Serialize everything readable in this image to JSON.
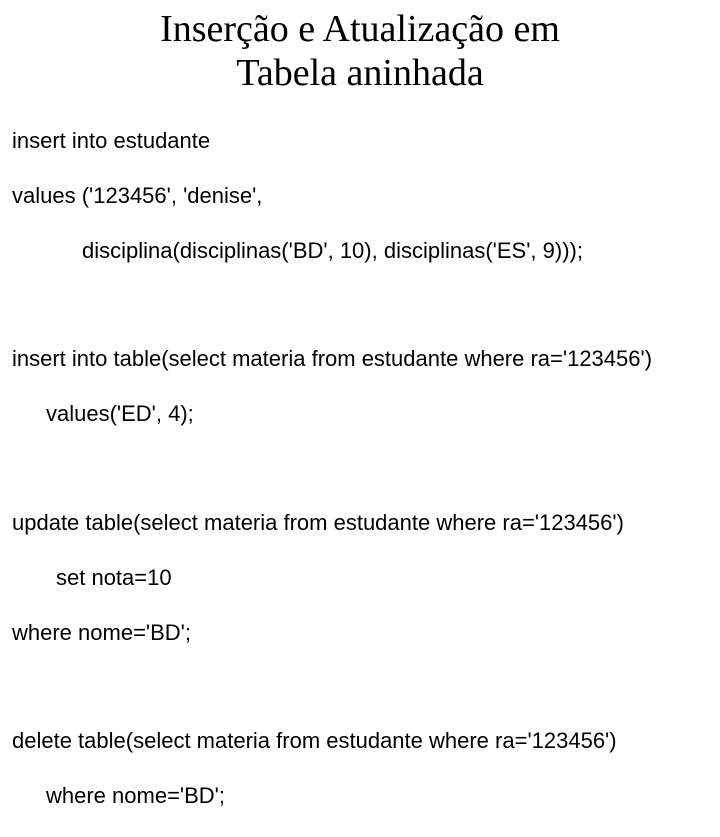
{
  "title_line1": "Inserção e Atualização em",
  "title_line2": "Tabela aninhada",
  "block1_l1": "insert into estudante",
  "block1_l2": "values ('123456', 'denise',",
  "block1_l3": "disciplina(disciplinas('BD', 10), disciplinas('ES', 9)));",
  "block2_l1": "insert into table(select materia from estudante where ra='123456')",
  "block2_l2": "values('ED', 4);",
  "block3_l1": "update table(select materia from estudante where ra='123456')",
  "block3_l2": "set nota=10",
  "block3_l3": "where nome='BD';",
  "block4_l1": "delete table(select materia from estudante where ra='123456')",
  "block4_l2": "where nome='BD';",
  "colors": {
    "background": "#ffffff",
    "text": "#000000"
  },
  "fonts": {
    "title_family": "Times New Roman",
    "title_size_pt": 28,
    "body_family": "Arial",
    "body_size_pt": 16
  }
}
